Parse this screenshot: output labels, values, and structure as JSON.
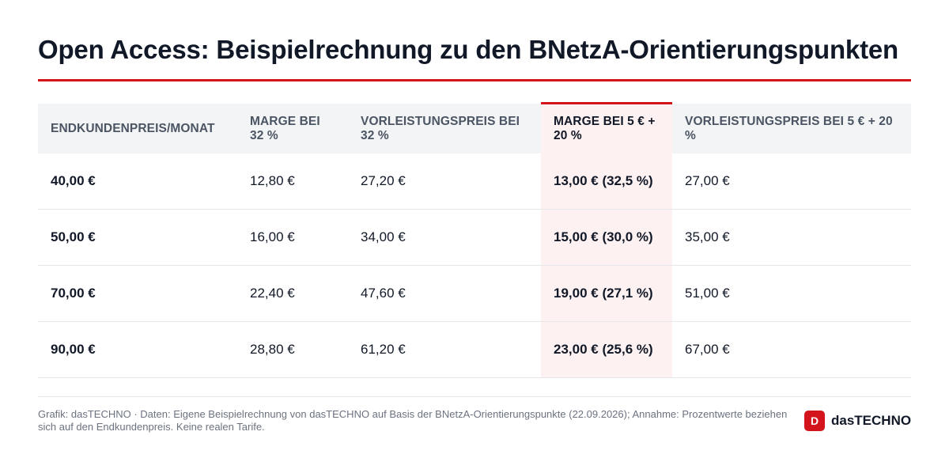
{
  "title": "Open Access: Beispielrechnung zu den BNetzA-Orientierungspunkten",
  "colors": {
    "accent": "#d3141c",
    "header_bg": "#f3f4f6",
    "highlight_bg": "#fdf1f1"
  },
  "table": {
    "headers": [
      "Endkundenpreis/Monat",
      "Marge bei 32 %",
      "Vorleistungspreis bei 32 %",
      "Marge bei 5 € + 20 %",
      "Vorleistungspreis bei 5 € + 20 %"
    ],
    "rows": [
      [
        "40,00 €",
        "12,80 €",
        "27,20 €",
        "13,00 € (32,5 %)",
        "27,00 €"
      ],
      [
        "50,00 €",
        "16,00 €",
        "34,00 €",
        "15,00 € (30,0 %)",
        "35,00 €"
      ],
      [
        "70,00 €",
        "22,40 €",
        "47,60 €",
        "19,00 € (27,1 %)",
        "51,00 €"
      ],
      [
        "90,00 €",
        "28,80 €",
        "61,20 €",
        "23,00 € (25,6 %)",
        "67,00 €"
      ]
    ]
  },
  "footnote": "Grafik: dasTECHNO · Daten: Eigene Beispielrechnung von dasTECHNO auf Basis der BNetzA-Orientierungspunkte (22.09.2026); Annahme: Prozentwerte beziehen sich auf den Endkundenpreis. Keine realen Tarife.",
  "brand": {
    "logo_letter": "D",
    "name": "dasTECHNO"
  }
}
